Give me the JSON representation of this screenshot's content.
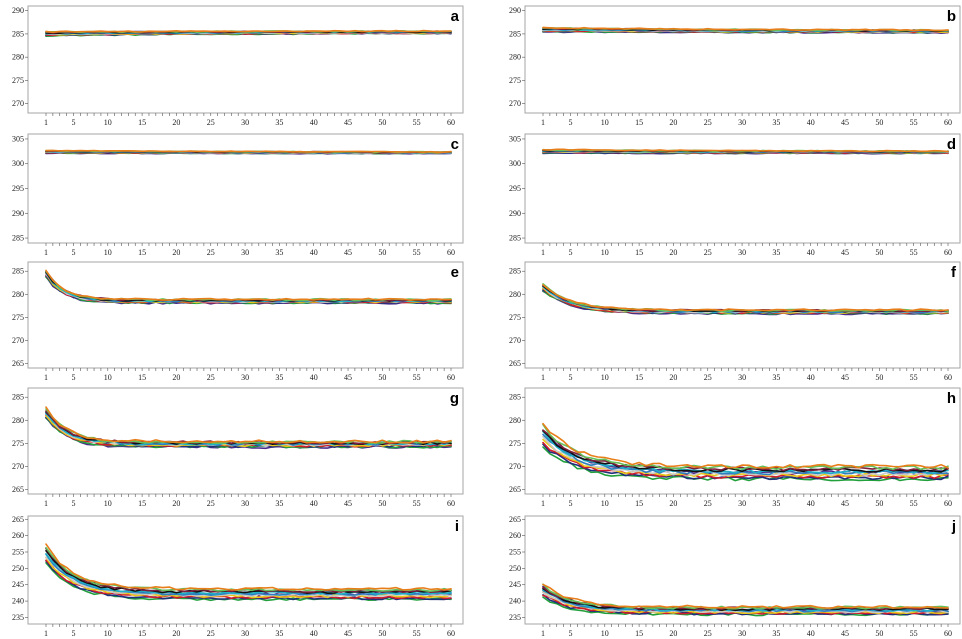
{
  "chart_data": [
    {
      "type": "line",
      "label": "a",
      "yticks": [
        270,
        275,
        280,
        285,
        290
      ],
      "ylim": [
        268,
        291
      ],
      "xlim": [
        1,
        60
      ],
      "xticks": [
        "1",
        "5",
        "10",
        "15",
        "20",
        "25",
        "30",
        "35",
        "40",
        "45",
        "50",
        "55",
        "60"
      ],
      "start": 285.0,
      "end": 285.4,
      "tau": 30,
      "spread": 0.5,
      "series": [
        {
          "color": "#4b2a8c",
          "values": [
            284.6,
            284.8,
            285.0,
            285.1,
            285.2,
            285.3,
            285.3,
            285.4,
            285.4,
            285.4,
            285.4,
            285.5,
            285.4,
            285.5,
            285.5,
            285.4,
            285.5,
            285.5,
            285.5,
            285.5,
            285.5,
            285.4,
            285.5,
            285.5,
            285.5,
            285.5,
            285.5,
            285.5,
            285.5,
            285.5,
            285.5,
            285.5,
            285.5,
            285.5,
            285.5,
            285.5,
            285.5,
            285.5,
            285.5,
            285.5,
            285.5,
            285.5,
            285.5,
            285.5,
            285.5,
            285.5,
            285.5,
            285.5,
            285.5,
            285.5,
            285.5,
            285.5,
            285.5,
            285.5,
            285.5,
            285.5,
            285.5,
            285.5,
            285.5,
            285.5
          ]
        }
      ]
    },
    {
      "type": "line",
      "label": "b",
      "yticks": [
        270,
        275,
        280,
        285,
        290
      ],
      "ylim": [
        268,
        291
      ],
      "xlim": [
        1,
        60
      ],
      "xticks": [
        "1",
        "5",
        "10",
        "15",
        "20",
        "25",
        "30",
        "35",
        "40",
        "45",
        "50",
        "55",
        "60"
      ],
      "start": 285.9,
      "end": 285.5,
      "tau": 30,
      "spread": 0.5,
      "series": []
    },
    {
      "type": "line",
      "label": "c",
      "yticks": [
        285,
        290,
        295,
        300,
        305
      ],
      "ylim": [
        284,
        306
      ],
      "xlim": [
        1,
        60
      ],
      "xticks": [
        "1",
        "5",
        "10",
        "15",
        "20",
        "25",
        "30",
        "35",
        "40",
        "45",
        "50",
        "55",
        "60"
      ],
      "start": 302.4,
      "end": 302.2,
      "tau": 30,
      "spread": 0.3,
      "series": []
    },
    {
      "type": "line",
      "label": "d",
      "yticks": [
        285,
        290,
        295,
        300,
        305
      ],
      "ylim": [
        284,
        306
      ],
      "xlim": [
        1,
        60
      ],
      "xticks": [
        "1",
        "5",
        "10",
        "15",
        "20",
        "25",
        "30",
        "35",
        "40",
        "45",
        "50",
        "55",
        "60"
      ],
      "start": 302.5,
      "end": 302.3,
      "tau": 30,
      "spread": 0.4,
      "series": []
    },
    {
      "type": "line",
      "label": "e",
      "yticks": [
        265,
        270,
        275,
        280,
        285
      ],
      "ylim": [
        264,
        287
      ],
      "xlim": [
        1,
        60
      ],
      "xticks": [
        "1",
        "5",
        "10",
        "15",
        "20",
        "25",
        "30",
        "35",
        "40",
        "45",
        "50",
        "55",
        "60"
      ],
      "start": 284.5,
      "end": 278.5,
      "tau": 2.5,
      "spread": 0.8,
      "series": []
    },
    {
      "type": "line",
      "label": "f",
      "yticks": [
        265,
        270,
        275,
        280,
        285
      ],
      "ylim": [
        264,
        287
      ],
      "xlim": [
        1,
        60
      ],
      "xticks": [
        "1",
        "5",
        "10",
        "15",
        "20",
        "25",
        "30",
        "35",
        "40",
        "45",
        "50",
        "55",
        "60"
      ],
      "start": 281.5,
      "end": 276.2,
      "tau": 4,
      "spread": 0.8,
      "series": []
    },
    {
      "type": "line",
      "label": "g",
      "yticks": [
        265,
        270,
        275,
        280,
        285
      ],
      "ylim": [
        264,
        287
      ],
      "xlim": [
        1,
        60
      ],
      "xticks": [
        "1",
        "5",
        "10",
        "15",
        "20",
        "25",
        "30",
        "35",
        "40",
        "45",
        "50",
        "55",
        "60"
      ],
      "start": 281.5,
      "end": 274.8,
      "tau": 3,
      "spread": 1.2,
      "series": []
    },
    {
      "type": "line",
      "label": "h",
      "yticks": [
        265,
        270,
        275,
        280,
        285
      ],
      "ylim": [
        264,
        287
      ],
      "xlim": [
        1,
        60
      ],
      "xticks": [
        "1",
        "5",
        "10",
        "15",
        "20",
        "25",
        "30",
        "35",
        "40",
        "45",
        "50",
        "55",
        "60"
      ],
      "start": 276.5,
      "end": 268.5,
      "tau": 5,
      "spread": 3.0,
      "series": []
    },
    {
      "type": "line",
      "label": "i",
      "yticks": [
        235,
        240,
        245,
        250,
        255,
        260,
        265
      ],
      "ylim": [
        233,
        266
      ],
      "xlim": [
        1,
        60
      ],
      "xticks": [
        "1",
        "5",
        "10",
        "15",
        "20",
        "25",
        "30",
        "35",
        "40",
        "45",
        "50",
        "55",
        "60"
      ],
      "start": 254,
      "end": 242,
      "tau": 4,
      "spread": 3.5,
      "series": []
    },
    {
      "type": "line",
      "label": "j",
      "yticks": [
        235,
        240,
        245,
        250,
        255,
        260,
        265
      ],
      "ylim": [
        233,
        266
      ],
      "xlim": [
        1,
        60
      ],
      "xticks": [
        "1",
        "5",
        "10",
        "15",
        "20",
        "25",
        "30",
        "35",
        "40",
        "45",
        "50",
        "55",
        "60"
      ],
      "start": 243,
      "end": 237,
      "tau": 4,
      "spread": 2.5,
      "series": []
    }
  ],
  "palette": [
    "#4b2a8c",
    "#22a03c",
    "#1f2f7a",
    "#d01c2c",
    "#e8c81a",
    "#c9c9c9",
    "#2e7fc0",
    "#1fb0c8",
    "#111111",
    "#7c1f3c",
    "#63c05a",
    "#e87e1a"
  ]
}
